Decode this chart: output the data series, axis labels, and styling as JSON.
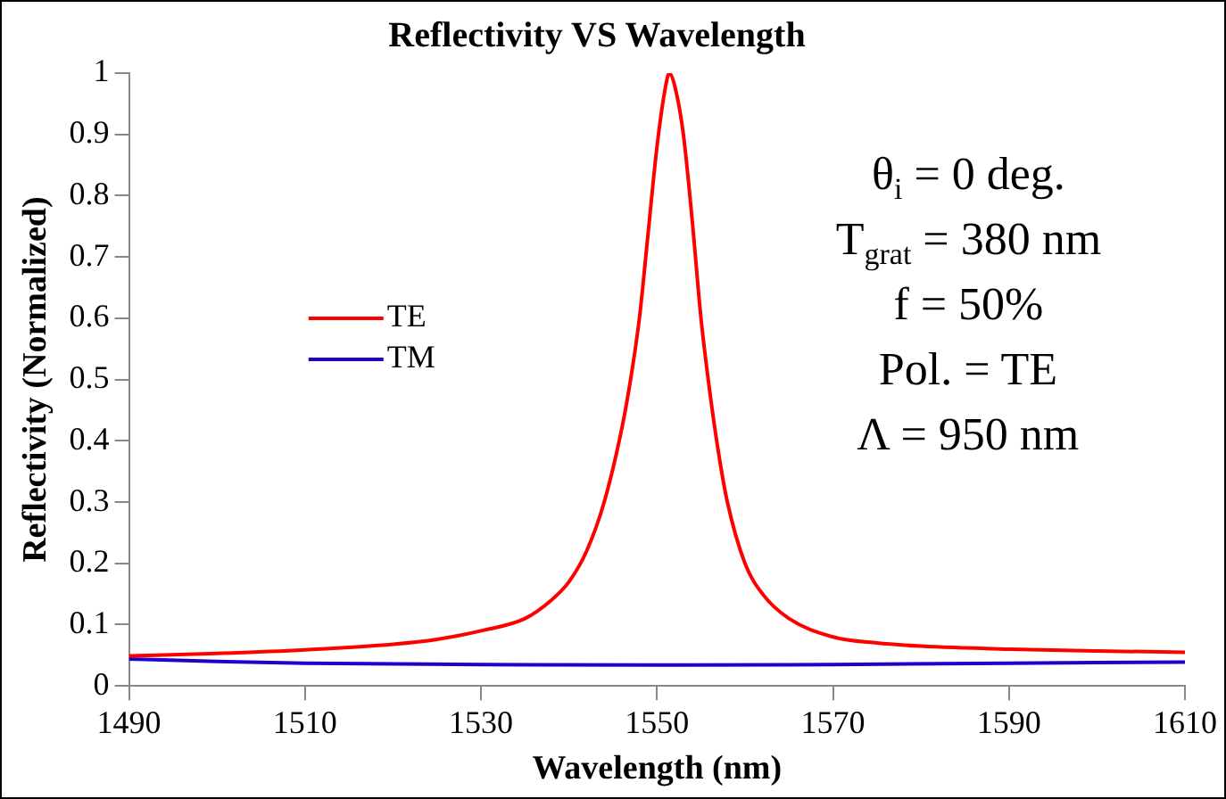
{
  "chart_data": {
    "type": "line",
    "title": "Reflectivity VS Wavelength",
    "xlabel": "Wavelength (nm)",
    "ylabel": "Reflectivity (Normalized)",
    "xlim": [
      1490,
      1610
    ],
    "xticks": [
      1490,
      1510,
      1530,
      1550,
      1570,
      1590,
      1610
    ],
    "ylim": [
      0,
      1
    ],
    "yticks": [
      0,
      0.1,
      0.2,
      0.3,
      0.4,
      0.5,
      0.6,
      0.7,
      0.8,
      0.9,
      1
    ],
    "grid": false,
    "legend": "left",
    "marker": "none",
    "line_style": "solid",
    "annotations": [
      "θ$_{i}$ = 0 deg.",
      "T$_{grat}$ = 380 nm",
      "f = 50%",
      "Pol. = TE",
      "Λ = 950 nm"
    ],
    "series": [
      {
        "name": "TE",
        "color": "#ff0000",
        "x": [
          1490,
          1500,
          1510,
          1520,
          1525,
          1530,
          1535,
          1538,
          1540,
          1542,
          1544,
          1546,
          1547,
          1548,
          1549,
          1550,
          1551,
          1551.4,
          1552,
          1553,
          1554,
          1555,
          1556,
          1557,
          1558,
          1560,
          1562,
          1565,
          1570,
          1575,
          1580,
          1590,
          1600,
          1610
        ],
        "values": [
          0.049,
          0.053,
          0.059,
          0.068,
          0.076,
          0.09,
          0.11,
          0.14,
          0.17,
          0.22,
          0.3,
          0.42,
          0.5,
          0.6,
          0.74,
          0.88,
          0.98,
          1.0,
          0.98,
          0.9,
          0.76,
          0.6,
          0.48,
          0.38,
          0.3,
          0.2,
          0.15,
          0.11,
          0.08,
          0.07,
          0.065,
          0.06,
          0.057,
          0.055
        ]
      },
      {
        "name": "TM",
        "color": "#2200cc",
        "x": [
          1490,
          1500,
          1510,
          1530,
          1550,
          1570,
          1590,
          1610
        ],
        "values": [
          0.044,
          0.04,
          0.037,
          0.035,
          0.034,
          0.035,
          0.037,
          0.039
        ]
      }
    ]
  }
}
